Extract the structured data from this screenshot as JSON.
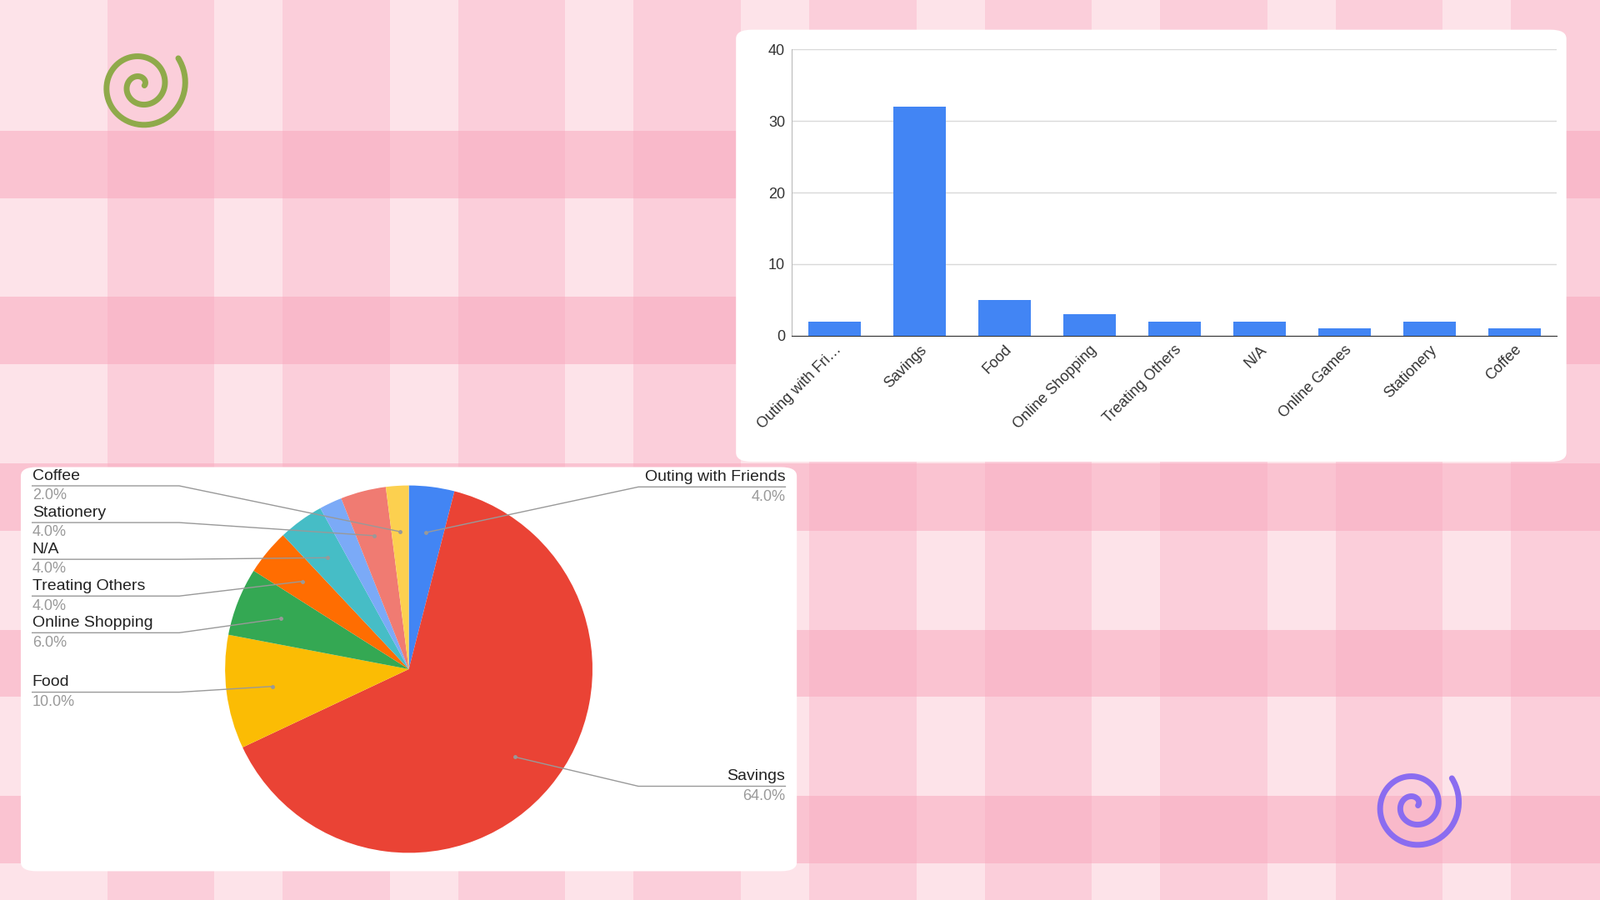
{
  "chart_data": [
    {
      "type": "bar",
      "categories": [
        "Outing with Fri…",
        "Savings",
        "Food",
        "Online Shopping",
        "Treating Others",
        "N/A",
        "Online Games",
        "Stationery",
        "Coffee"
      ],
      "values": [
        2,
        32,
        5,
        3,
        2,
        2,
        1,
        2,
        1
      ],
      "color": "#4285f4",
      "ylim": [
        0,
        40
      ],
      "yticks": [
        0,
        10,
        20,
        30,
        40
      ],
      "grid": true
    },
    {
      "type": "pie",
      "categories": [
        "Outing with Friends",
        "Savings",
        "Food",
        "Online Shopping",
        "Treating Others",
        "N/A",
        null,
        "Stationery",
        "Coffee"
      ],
      "values": [
        4,
        64,
        10,
        6,
        4,
        4,
        2,
        4,
        2
      ],
      "value_labels": [
        "4.0%",
        "64.0%",
        "10.0%",
        "6.0%",
        "4.0%",
        "4.0%",
        null,
        "4.0%",
        "2.0%"
      ],
      "colors": [
        "#4285f4",
        "#ea4335",
        "#fbbc04",
        "#34a853",
        "#ff6d01",
        "#46bdc6",
        "#7baaf7",
        "#f07b72",
        "#fcd04f"
      ],
      "data_labels": true
    }
  ]
}
